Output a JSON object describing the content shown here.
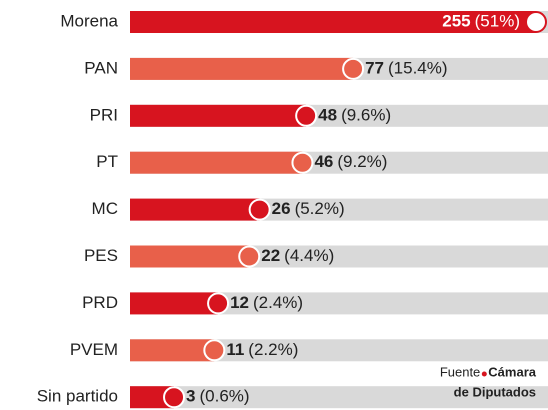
{
  "chart_data": {
    "type": "bar",
    "orientation": "horizontal",
    "xscale": "sqrt",
    "categories": [
      "Morena",
      "PAN",
      "PRI",
      "PT",
      "MC",
      "PES",
      "PRD",
      "PVEM",
      "Sin partido"
    ],
    "values": [
      255,
      77,
      48,
      46,
      26,
      22,
      12,
      11,
      3
    ],
    "shares": [
      "(51%)",
      "(15.4%)",
      "(9.6%)",
      "(9.2%)",
      "(5.2%)",
      "(4.4%)",
      "(2.4%)",
      "(2.2%)",
      "(0.6%)"
    ],
    "colors": [
      "#d7141f",
      "#e8604a"
    ],
    "track_color": "#d9d9d9",
    "xlim": [
      0,
      255
    ],
    "source": {
      "label": "Fuente",
      "name": [
        "Cámara",
        "de Diputados"
      ]
    }
  }
}
